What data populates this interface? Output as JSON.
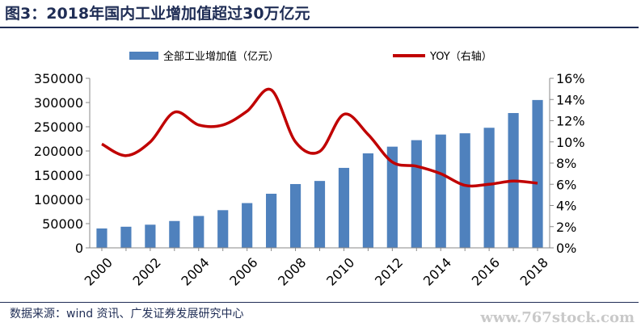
{
  "title": "图3：2018年国内工业增加值超过30万亿元",
  "source": "数据来源：wind 资讯、广发证券发展研究中心",
  "watermark": "www.767stock.com",
  "chart_data": {
    "type": "bar",
    "categories": [
      "2000",
      "2001",
      "2002",
      "2003",
      "2004",
      "2005",
      "2006",
      "2007",
      "2008",
      "2009",
      "2010",
      "2011",
      "2012",
      "2013",
      "2014",
      "2015",
      "2016",
      "2017",
      "2018"
    ],
    "x_tick_labels": [
      "2000",
      "2002",
      "2004",
      "2006",
      "2008",
      "2010",
      "2012",
      "2014",
      "2016",
      "2018"
    ],
    "series": [
      {
        "name": "全部工业增加值（亿元）",
        "type": "bar",
        "axis": "left",
        "color": "#4f81bd",
        "values": [
          40000,
          43600,
          47800,
          55400,
          65800,
          77800,
          92400,
          111700,
          131700,
          138100,
          165100,
          195100,
          208900,
          222300,
          233900,
          236500,
          247900,
          278300,
          305200
        ]
      },
      {
        "name": "YOY（右轴）",
        "type": "line",
        "axis": "right",
        "color": "#c00000",
        "values": [
          9.8,
          8.7,
          10.0,
          12.8,
          11.6,
          11.6,
          12.9,
          14.9,
          10.0,
          9.1,
          12.6,
          10.7,
          8.1,
          7.7,
          7.0,
          5.9,
          6.0,
          6.3,
          6.1
        ]
      }
    ],
    "y_left": {
      "min": 0,
      "max": 350000,
      "ticks": [
        "0",
        "50000",
        "100000",
        "150000",
        "200000",
        "250000",
        "300000",
        "350000"
      ]
    },
    "y_right": {
      "min": 0,
      "max": 16,
      "ticks": [
        "0%",
        "2%",
        "4%",
        "6%",
        "8%",
        "10%",
        "12%",
        "14%",
        "16%"
      ]
    },
    "grid": false,
    "legend_position": "top"
  }
}
